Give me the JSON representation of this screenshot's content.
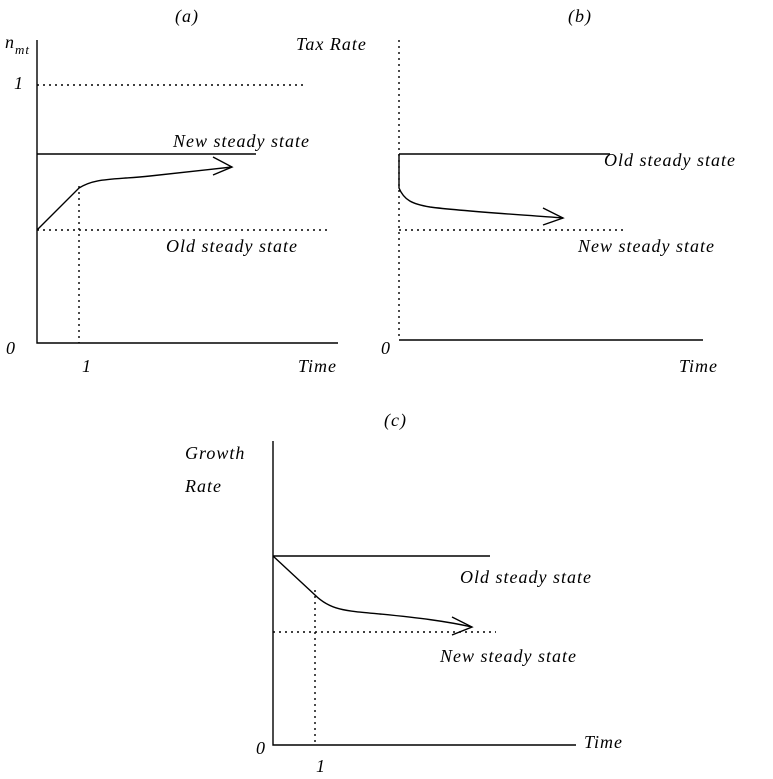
{
  "panel_a": {
    "caption": "(a)",
    "y_label": "n",
    "y_label_sub": "mt",
    "y_tick_one": "1",
    "origin": "0",
    "x_tick_one": "1",
    "x_label": "Time",
    "upper_line_label": "New steady state",
    "lower_line_label": "Old steady state"
  },
  "panel_b": {
    "caption": "(b)",
    "y_label": "Tax Rate",
    "origin": "0",
    "x_label": "Time",
    "upper_line_label": "Old steady state",
    "lower_line_label": "New steady state"
  },
  "panel_c": {
    "caption": "(c)",
    "y_label_line1": "Growth",
    "y_label_line2": "Rate",
    "origin": "0",
    "x_tick_one": "1",
    "x_label": "Time",
    "upper_line_label": "Old steady state",
    "lower_line_label": "New steady state"
  }
}
